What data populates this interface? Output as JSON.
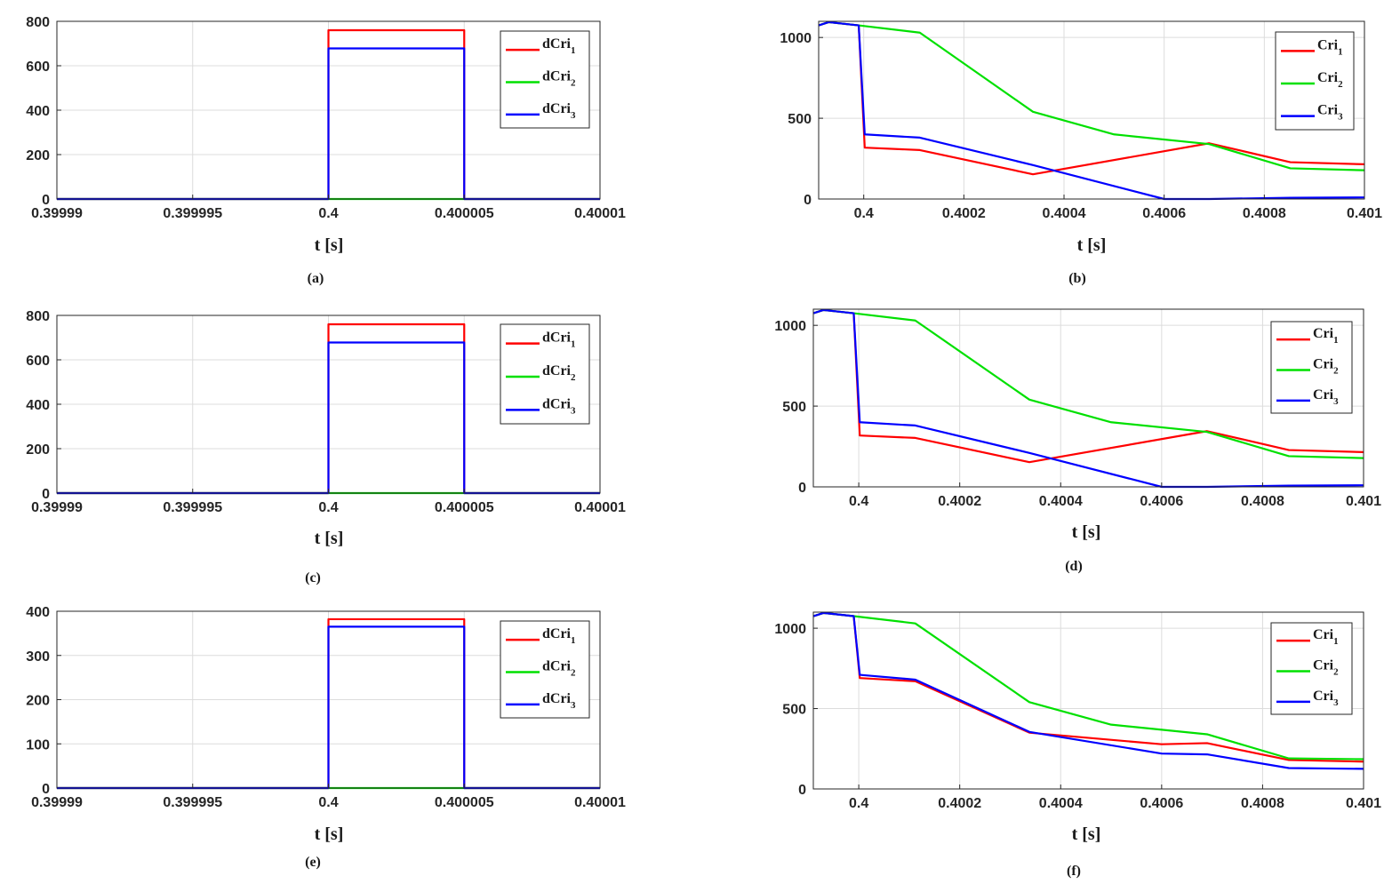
{
  "colors": {
    "series1": "#ff0000",
    "series2": "#00e000",
    "series3": "#0000ff",
    "grid": "#dcdcdc",
    "axis": "#262626"
  },
  "chart_data": [
    {
      "id": "a",
      "type": "line",
      "caption": "(a)",
      "xlabel": "t [s]",
      "ylabel": "",
      "xlim": [
        0.39999,
        0.40001
      ],
      "ylim": [
        0,
        800
      ],
      "xticks": [
        0.39999,
        0.399995,
        0.4,
        0.400005,
        0.40001
      ],
      "xtick_labels": [
        "0.39999",
        "0.399995",
        "0.4",
        "0.400005",
        "0.40001"
      ],
      "yticks": [
        0,
        200,
        400,
        600,
        800
      ],
      "ytick_labels": [
        "0",
        "200",
        "400",
        "600",
        "800"
      ],
      "grid": true,
      "legend": "top-right",
      "series": [
        {
          "name": "dCri",
          "sub": "1",
          "color": "#ff0000",
          "x": [
            0.39999,
            0.4,
            0.4,
            0.400005,
            0.400005,
            0.40001
          ],
          "y": [
            0,
            0,
            760,
            760,
            0,
            0
          ]
        },
        {
          "name": "dCri",
          "sub": "2",
          "color": "#00e000",
          "x": [
            0.39999,
            0.40001
          ],
          "y": [
            0,
            0
          ]
        },
        {
          "name": "dCri",
          "sub": "3",
          "color": "#0000ff",
          "x": [
            0.39999,
            0.4,
            0.4,
            0.400005,
            0.400005,
            0.40001
          ],
          "y": [
            0,
            0,
            678,
            678,
            0,
            0
          ]
        }
      ]
    },
    {
      "id": "b",
      "type": "line",
      "caption": "(b)",
      "xlabel": "t [s]",
      "ylabel": "",
      "xlim": [
        0.39991,
        0.401
      ],
      "ylim": [
        0,
        1100
      ],
      "xticks": [
        0.4,
        0.4002,
        0.4004,
        0.4006,
        0.4008,
        0.401
      ],
      "xtick_labels": [
        "0.4",
        "0.4002",
        "0.4004",
        "0.4006",
        "0.4008",
        "0.401"
      ],
      "yticks": [
        0,
        500,
        1000
      ],
      "ytick_labels": [
        "0",
        "500",
        "1000"
      ],
      "grid": true,
      "legend": "top-right",
      "series": [
        {
          "name": "Cri",
          "sub": "1",
          "color": "#ff0000",
          "x": [
            0.39991,
            0.39993,
            0.39999,
            0.400002,
            0.400112,
            0.400338,
            0.40069,
            0.400852,
            0.401
          ],
          "y": [
            1075,
            1095,
            1075,
            318,
            303,
            153,
            345,
            228,
            215
          ]
        },
        {
          "name": "Cri",
          "sub": "2",
          "color": "#00e000",
          "x": [
            0.39991,
            0.39993,
            0.39999,
            0.400112,
            0.400338,
            0.4005,
            0.40069,
            0.400852,
            0.401
          ],
          "y": [
            1075,
            1095,
            1075,
            1030,
            540,
            400,
            340,
            190,
            178
          ]
        },
        {
          "name": "Cri",
          "sub": "3",
          "color": "#0000ff",
          "x": [
            0.39991,
            0.39993,
            0.39999,
            0.400002,
            0.400112,
            0.400338,
            0.4006,
            0.40069,
            0.400852,
            0.401
          ],
          "y": [
            1075,
            1095,
            1075,
            400,
            380,
            210,
            0,
            0,
            8,
            10
          ]
        }
      ]
    },
    {
      "id": "c",
      "type": "line",
      "caption": "(c)",
      "xlabel": "t [s]",
      "ylabel": "",
      "xlim": [
        0.39999,
        0.40001
      ],
      "ylim": [
        0,
        800
      ],
      "xticks": [
        0.39999,
        0.399995,
        0.4,
        0.400005,
        0.40001
      ],
      "xtick_labels": [
        "0.39999",
        "0.399995",
        "0.4",
        "0.400005",
        "0.40001"
      ],
      "yticks": [
        0,
        200,
        400,
        600,
        800
      ],
      "ytick_labels": [
        "0",
        "200",
        "400",
        "600",
        "800"
      ],
      "grid": true,
      "legend": "top-right",
      "series": [
        {
          "name": "dCri",
          "sub": "1",
          "color": "#ff0000",
          "x": [
            0.39999,
            0.4,
            0.4,
            0.400005,
            0.400005,
            0.40001
          ],
          "y": [
            0,
            0,
            760,
            760,
            0,
            0
          ]
        },
        {
          "name": "dCri",
          "sub": "2",
          "color": "#00e000",
          "x": [
            0.39999,
            0.40001
          ],
          "y": [
            0,
            0
          ]
        },
        {
          "name": "dCri",
          "sub": "3",
          "color": "#0000ff",
          "x": [
            0.39999,
            0.4,
            0.4,
            0.400005,
            0.400005,
            0.40001
          ],
          "y": [
            0,
            0,
            678,
            678,
            0,
            0
          ]
        }
      ]
    },
    {
      "id": "d",
      "type": "line",
      "caption": "(d)",
      "xlabel": "t [s]",
      "ylabel": "",
      "xlim": [
        0.39991,
        0.401
      ],
      "ylim": [
        0,
        1100
      ],
      "xticks": [
        0.4,
        0.4002,
        0.4004,
        0.4006,
        0.4008,
        0.401
      ],
      "xtick_labels": [
        "0.4",
        "0.4002",
        "0.4004",
        "0.4006",
        "0.4008",
        "0.401"
      ],
      "yticks": [
        0,
        500,
        1000
      ],
      "ytick_labels": [
        "0",
        "500",
        "1000"
      ],
      "grid": true,
      "legend": "top-right",
      "series": [
        {
          "name": "Cri",
          "sub": "1",
          "color": "#ff0000",
          "x": [
            0.39991,
            0.39993,
            0.39999,
            0.400002,
            0.400112,
            0.400338,
            0.40069,
            0.400852,
            0.401
          ],
          "y": [
            1075,
            1095,
            1075,
            318,
            303,
            153,
            345,
            228,
            215
          ]
        },
        {
          "name": "Cri",
          "sub": "2",
          "color": "#00e000",
          "x": [
            0.39991,
            0.39993,
            0.39999,
            0.400112,
            0.400338,
            0.4005,
            0.40069,
            0.400852,
            0.401
          ],
          "y": [
            1075,
            1095,
            1075,
            1030,
            540,
            400,
            340,
            190,
            178
          ]
        },
        {
          "name": "Cri",
          "sub": "3",
          "color": "#0000ff",
          "x": [
            0.39991,
            0.39993,
            0.39999,
            0.400002,
            0.400112,
            0.400338,
            0.4006,
            0.40069,
            0.400852,
            0.401
          ],
          "y": [
            1075,
            1095,
            1075,
            400,
            380,
            210,
            0,
            0,
            8,
            10
          ]
        }
      ]
    },
    {
      "id": "e",
      "type": "line",
      "caption": "(e)",
      "xlabel": "t [s]",
      "ylabel": "",
      "xlim": [
        0.39999,
        0.40001
      ],
      "ylim": [
        0,
        400
      ],
      "xticks": [
        0.39999,
        0.399995,
        0.4,
        0.400005,
        0.40001
      ],
      "xtick_labels": [
        "0.39999",
        "0.399995",
        "0.4",
        "0.400005",
        "0.40001"
      ],
      "yticks": [
        0,
        100,
        200,
        300,
        400
      ],
      "ytick_labels": [
        "0",
        "100",
        "200",
        "300",
        "400"
      ],
      "grid": true,
      "legend": "top-right",
      "series": [
        {
          "name": "dCri",
          "sub": "1",
          "color": "#ff0000",
          "x": [
            0.39999,
            0.4,
            0.4,
            0.400005,
            0.400005,
            0.40001
          ],
          "y": [
            0,
            0,
            382,
            382,
            0,
            0
          ]
        },
        {
          "name": "dCri",
          "sub": "2",
          "color": "#00e000",
          "x": [
            0.39999,
            0.40001
          ],
          "y": [
            0,
            0
          ]
        },
        {
          "name": "dCri",
          "sub": "3",
          "color": "#0000ff",
          "x": [
            0.39999,
            0.4,
            0.4,
            0.400005,
            0.400005,
            0.40001
          ],
          "y": [
            0,
            0,
            365,
            365,
            0,
            0
          ]
        }
      ]
    },
    {
      "id": "f",
      "type": "line",
      "caption": "(f)",
      "xlabel": "t [s]",
      "ylabel": "",
      "xlim": [
        0.39991,
        0.401
      ],
      "ylim": [
        0,
        1100
      ],
      "xticks": [
        0.4,
        0.4002,
        0.4004,
        0.4006,
        0.4008,
        0.401
      ],
      "xtick_labels": [
        "0.4",
        "0.4002",
        "0.4004",
        "0.4006",
        "0.4008",
        "0.401"
      ],
      "yticks": [
        0,
        500,
        1000
      ],
      "ytick_labels": [
        "0",
        "500",
        "1000"
      ],
      "grid": true,
      "legend": "top-right",
      "series": [
        {
          "name": "Cri",
          "sub": "1",
          "color": "#ff0000",
          "x": [
            0.39991,
            0.39993,
            0.39999,
            0.400002,
            0.400112,
            0.400338,
            0.4006,
            0.40069,
            0.400852,
            0.401
          ],
          "y": [
            1075,
            1095,
            1075,
            690,
            670,
            350,
            278,
            285,
            180,
            170
          ]
        },
        {
          "name": "Cri",
          "sub": "2",
          "color": "#00e000",
          "x": [
            0.39991,
            0.39993,
            0.39999,
            0.400112,
            0.400338,
            0.4005,
            0.40069,
            0.400852,
            0.401
          ],
          "y": [
            1075,
            1095,
            1075,
            1030,
            540,
            400,
            340,
            190,
            185
          ]
        },
        {
          "name": "Cri",
          "sub": "3",
          "color": "#0000ff",
          "x": [
            0.39991,
            0.39993,
            0.39999,
            0.400002,
            0.400112,
            0.400338,
            0.4006,
            0.40069,
            0.400852,
            0.401
          ],
          "y": [
            1075,
            1095,
            1075,
            710,
            680,
            355,
            220,
            215,
            130,
            125
          ]
        }
      ]
    }
  ]
}
